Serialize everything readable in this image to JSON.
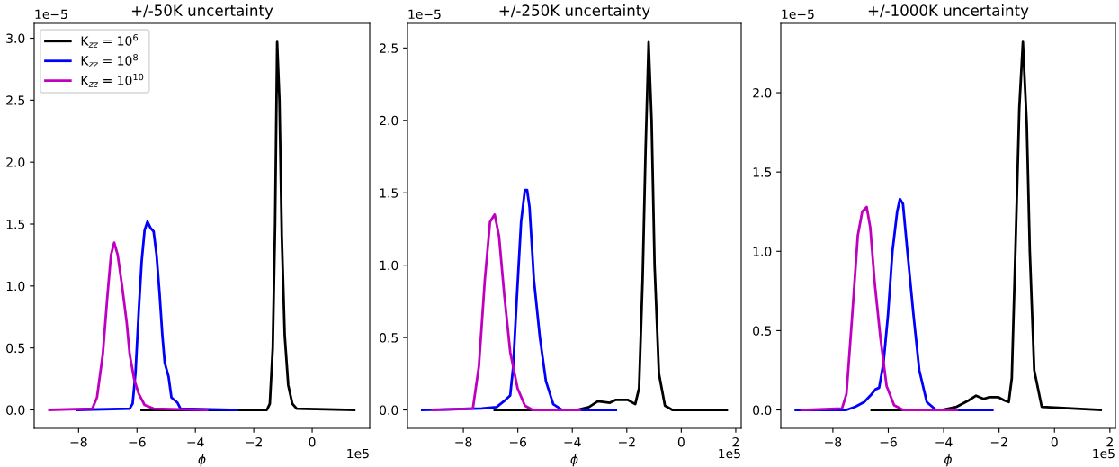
{
  "chart_data": [
    {
      "type": "line",
      "title": "+/-50K uncertainty",
      "xlabel": "ϕ",
      "annotations": [
        "1e−5",
        "1e5"
      ],
      "legend": "top left",
      "grid": false,
      "xlim": [
        -9.52,
        1.97
      ],
      "ylim": [
        -0.149,
        3.12
      ],
      "xticks": [
        {
          "value": -8,
          "label": "−8"
        },
        {
          "value": -6,
          "label": "−6"
        },
        {
          "value": -4,
          "label": "−4"
        },
        {
          "value": -2,
          "label": "−2"
        },
        0
      ],
      "yticks": [
        {
          "value": 0,
          "label": "0.0"
        },
        0.5,
        {
          "value": 1,
          "label": "1.0"
        },
        1.5,
        {
          "value": 2,
          "label": "2.0"
        },
        2.5,
        {
          "value": 3,
          "label": "3.0"
        }
      ],
      "series": [
        {
          "name": "K$_{zz}$ = 10$^{6}$",
          "color": "#000000",
          "x": [
            -5.84,
            -1.55,
            -1.45,
            -1.35,
            -1.27,
            -1.2,
            -1.12,
            -1.04,
            -0.94,
            -0.82,
            -0.68,
            -0.53,
            1.44
          ],
          "values": [
            0,
            0,
            0.05,
            0.5,
            1.5,
            2.97,
            2.5,
            1.4,
            0.6,
            0.2,
            0.05,
            0.01,
            0
          ]
        },
        {
          "name": "K$_{zz}$ = 10$^{8}$",
          "color": "#0000ff",
          "x": [
            -8.04,
            -6.25,
            -6.15,
            -6.05,
            -5.94,
            -5.84,
            -5.74,
            -5.64,
            -5.54,
            -5.43,
            -5.33,
            -5.23,
            -5.13,
            -5.05,
            -4.92,
            -4.82,
            -4.62,
            -4.51,
            -2.57
          ],
          "values": [
            0,
            0.01,
            0.05,
            0.3,
            0.8,
            1.2,
            1.45,
            1.52,
            1.47,
            1.44,
            1.25,
            0.95,
            0.6,
            0.38,
            0.27,
            0.1,
            0.06,
            0.01,
            0
          ]
        },
        {
          "name": "K$_{zz}$ = 10$^{10}$",
          "color": "#bf00bf",
          "x": [
            -9.0,
            -7.53,
            -7.37,
            -7.17,
            -7.02,
            -6.89,
            -6.78,
            -6.66,
            -6.51,
            -6.35,
            -6.25,
            -6.1,
            -5.94,
            -5.74,
            -5.43,
            -3.6
          ],
          "values": [
            0,
            0.01,
            0.1,
            0.45,
            0.9,
            1.25,
            1.35,
            1.25,
            1.0,
            0.7,
            0.45,
            0.25,
            0.13,
            0.04,
            0.01,
            0
          ]
        }
      ]
    },
    {
      "type": "line",
      "title": "+/-250K uncertainty",
      "xlabel": "ϕ",
      "annotations": [
        "1e−5",
        "1e5"
      ],
      "grid": false,
      "xlim": [
        -10.05,
        2.2
      ],
      "ylim": [
        -0.127,
        2.67
      ],
      "xticks": [
        {
          "value": -8,
          "label": "−8"
        },
        {
          "value": -6,
          "label": "−6"
        },
        {
          "value": -4,
          "label": "−4"
        },
        {
          "value": -2,
          "label": "−2"
        },
        0,
        2
      ],
      "yticks": [
        {
          "value": 0,
          "label": "0.0"
        },
        0.5,
        {
          "value": 1,
          "label": "1.0"
        },
        1.5,
        {
          "value": 2,
          "label": "2.0"
        },
        2.5
      ],
      "series": [
        {
          "color": "#000000",
          "x": [
            -6.85,
            -3.83,
            -3.39,
            -3.06,
            -2.62,
            -2.4,
            -1.97,
            -1.69,
            -1.55,
            -1.42,
            -1.31,
            -1.2,
            -1.09,
            -0.98,
            -0.82,
            -0.6,
            -0.33,
            1.67
          ],
          "values": [
            0,
            0,
            0.02,
            0.06,
            0.05,
            0.07,
            0.07,
            0.04,
            0.15,
            0.9,
            1.8,
            2.54,
            2.0,
            1.0,
            0.25,
            0.03,
            0,
            0
          ]
        },
        {
          "color": "#0000ff",
          "x": [
            -9.51,
            -7.32,
            -6.78,
            -6.45,
            -6.28,
            -6.17,
            -6.03,
            -5.88,
            -5.74,
            -5.66,
            -5.57,
            -5.41,
            -5.19,
            -4.97,
            -4.7,
            -4.37,
            -2.4
          ],
          "values": [
            0,
            0.01,
            0.02,
            0.07,
            0.1,
            0.3,
            0.8,
            1.3,
            1.52,
            1.52,
            1.4,
            0.9,
            0.5,
            0.2,
            0.04,
            0,
            0
          ]
        },
        {
          "color": "#bf00bf",
          "x": [
            -9.13,
            -7.65,
            -7.43,
            -7.21,
            -7.02,
            -6.85,
            -6.69,
            -6.5,
            -6.28,
            -6.01,
            -5.74,
            -5.46,
            -3.72
          ],
          "values": [
            0,
            0.01,
            0.3,
            0.9,
            1.3,
            1.35,
            1.2,
            0.8,
            0.4,
            0.15,
            0.03,
            0,
            0
          ]
        }
      ]
    },
    {
      "type": "line",
      "title": "+/-1000K uncertainty",
      "xlabel": "ϕ",
      "annotations": [
        "1e−5",
        "1e5"
      ],
      "grid": false,
      "xlim": [
        -9.88,
        2.2
      ],
      "ylim": [
        -0.116,
        2.437
      ],
      "xticks": [
        {
          "value": -8,
          "label": "−8"
        },
        {
          "value": -6,
          "label": "−6"
        },
        {
          "value": -4,
          "label": "−4"
        },
        {
          "value": -2,
          "label": "−2"
        },
        0,
        2
      ],
      "yticks": [
        {
          "value": 0,
          "label": "0.0"
        },
        0.5,
        {
          "value": 1,
          "label": "1.0"
        },
        1.5,
        {
          "value": 2,
          "label": "2.0"
        }
      ],
      "series": [
        {
          "color": "#000000",
          "x": [
            -6.6,
            -4.07,
            -3.53,
            -3.1,
            -2.83,
            -2.56,
            -2.35,
            -2.02,
            -1.81,
            -1.65,
            -1.54,
            -1.41,
            -1.27,
            -1.14,
            -1.0,
            -0.89,
            -0.73,
            -0.46,
            1.67
          ],
          "values": [
            0,
            0,
            0.02,
            0.06,
            0.09,
            0.07,
            0.08,
            0.08,
            0.06,
            0.05,
            0.2,
            1.0,
            1.9,
            2.32,
            1.8,
            1.0,
            0.25,
            0.02,
            0
          ]
        },
        {
          "color": "#0000ff",
          "x": [
            -9.34,
            -7.51,
            -7.19,
            -6.87,
            -6.6,
            -6.46,
            -6.33,
            -6.17,
            -6.01,
            -5.85,
            -5.68,
            -5.58,
            -5.47,
            -5.31,
            -5.09,
            -4.88,
            -4.61,
            -4.28,
            -2.24
          ],
          "values": [
            0,
            0,
            0.02,
            0.05,
            0.1,
            0.13,
            0.14,
            0.3,
            0.6,
            1.0,
            1.25,
            1.33,
            1.3,
            1.0,
            0.6,
            0.25,
            0.05,
            0,
            0
          ]
        },
        {
          "color": "#bf00bf",
          "x": [
            -9.13,
            -7.67,
            -7.51,
            -7.3,
            -7.1,
            -6.94,
            -6.78,
            -6.65,
            -6.49,
            -6.28,
            -6.06,
            -5.79,
            -5.47,
            -3.53
          ],
          "values": [
            0,
            0.01,
            0.1,
            0.6,
            1.1,
            1.25,
            1.28,
            1.15,
            0.8,
            0.45,
            0.15,
            0.03,
            0,
            0
          ]
        }
      ]
    }
  ]
}
